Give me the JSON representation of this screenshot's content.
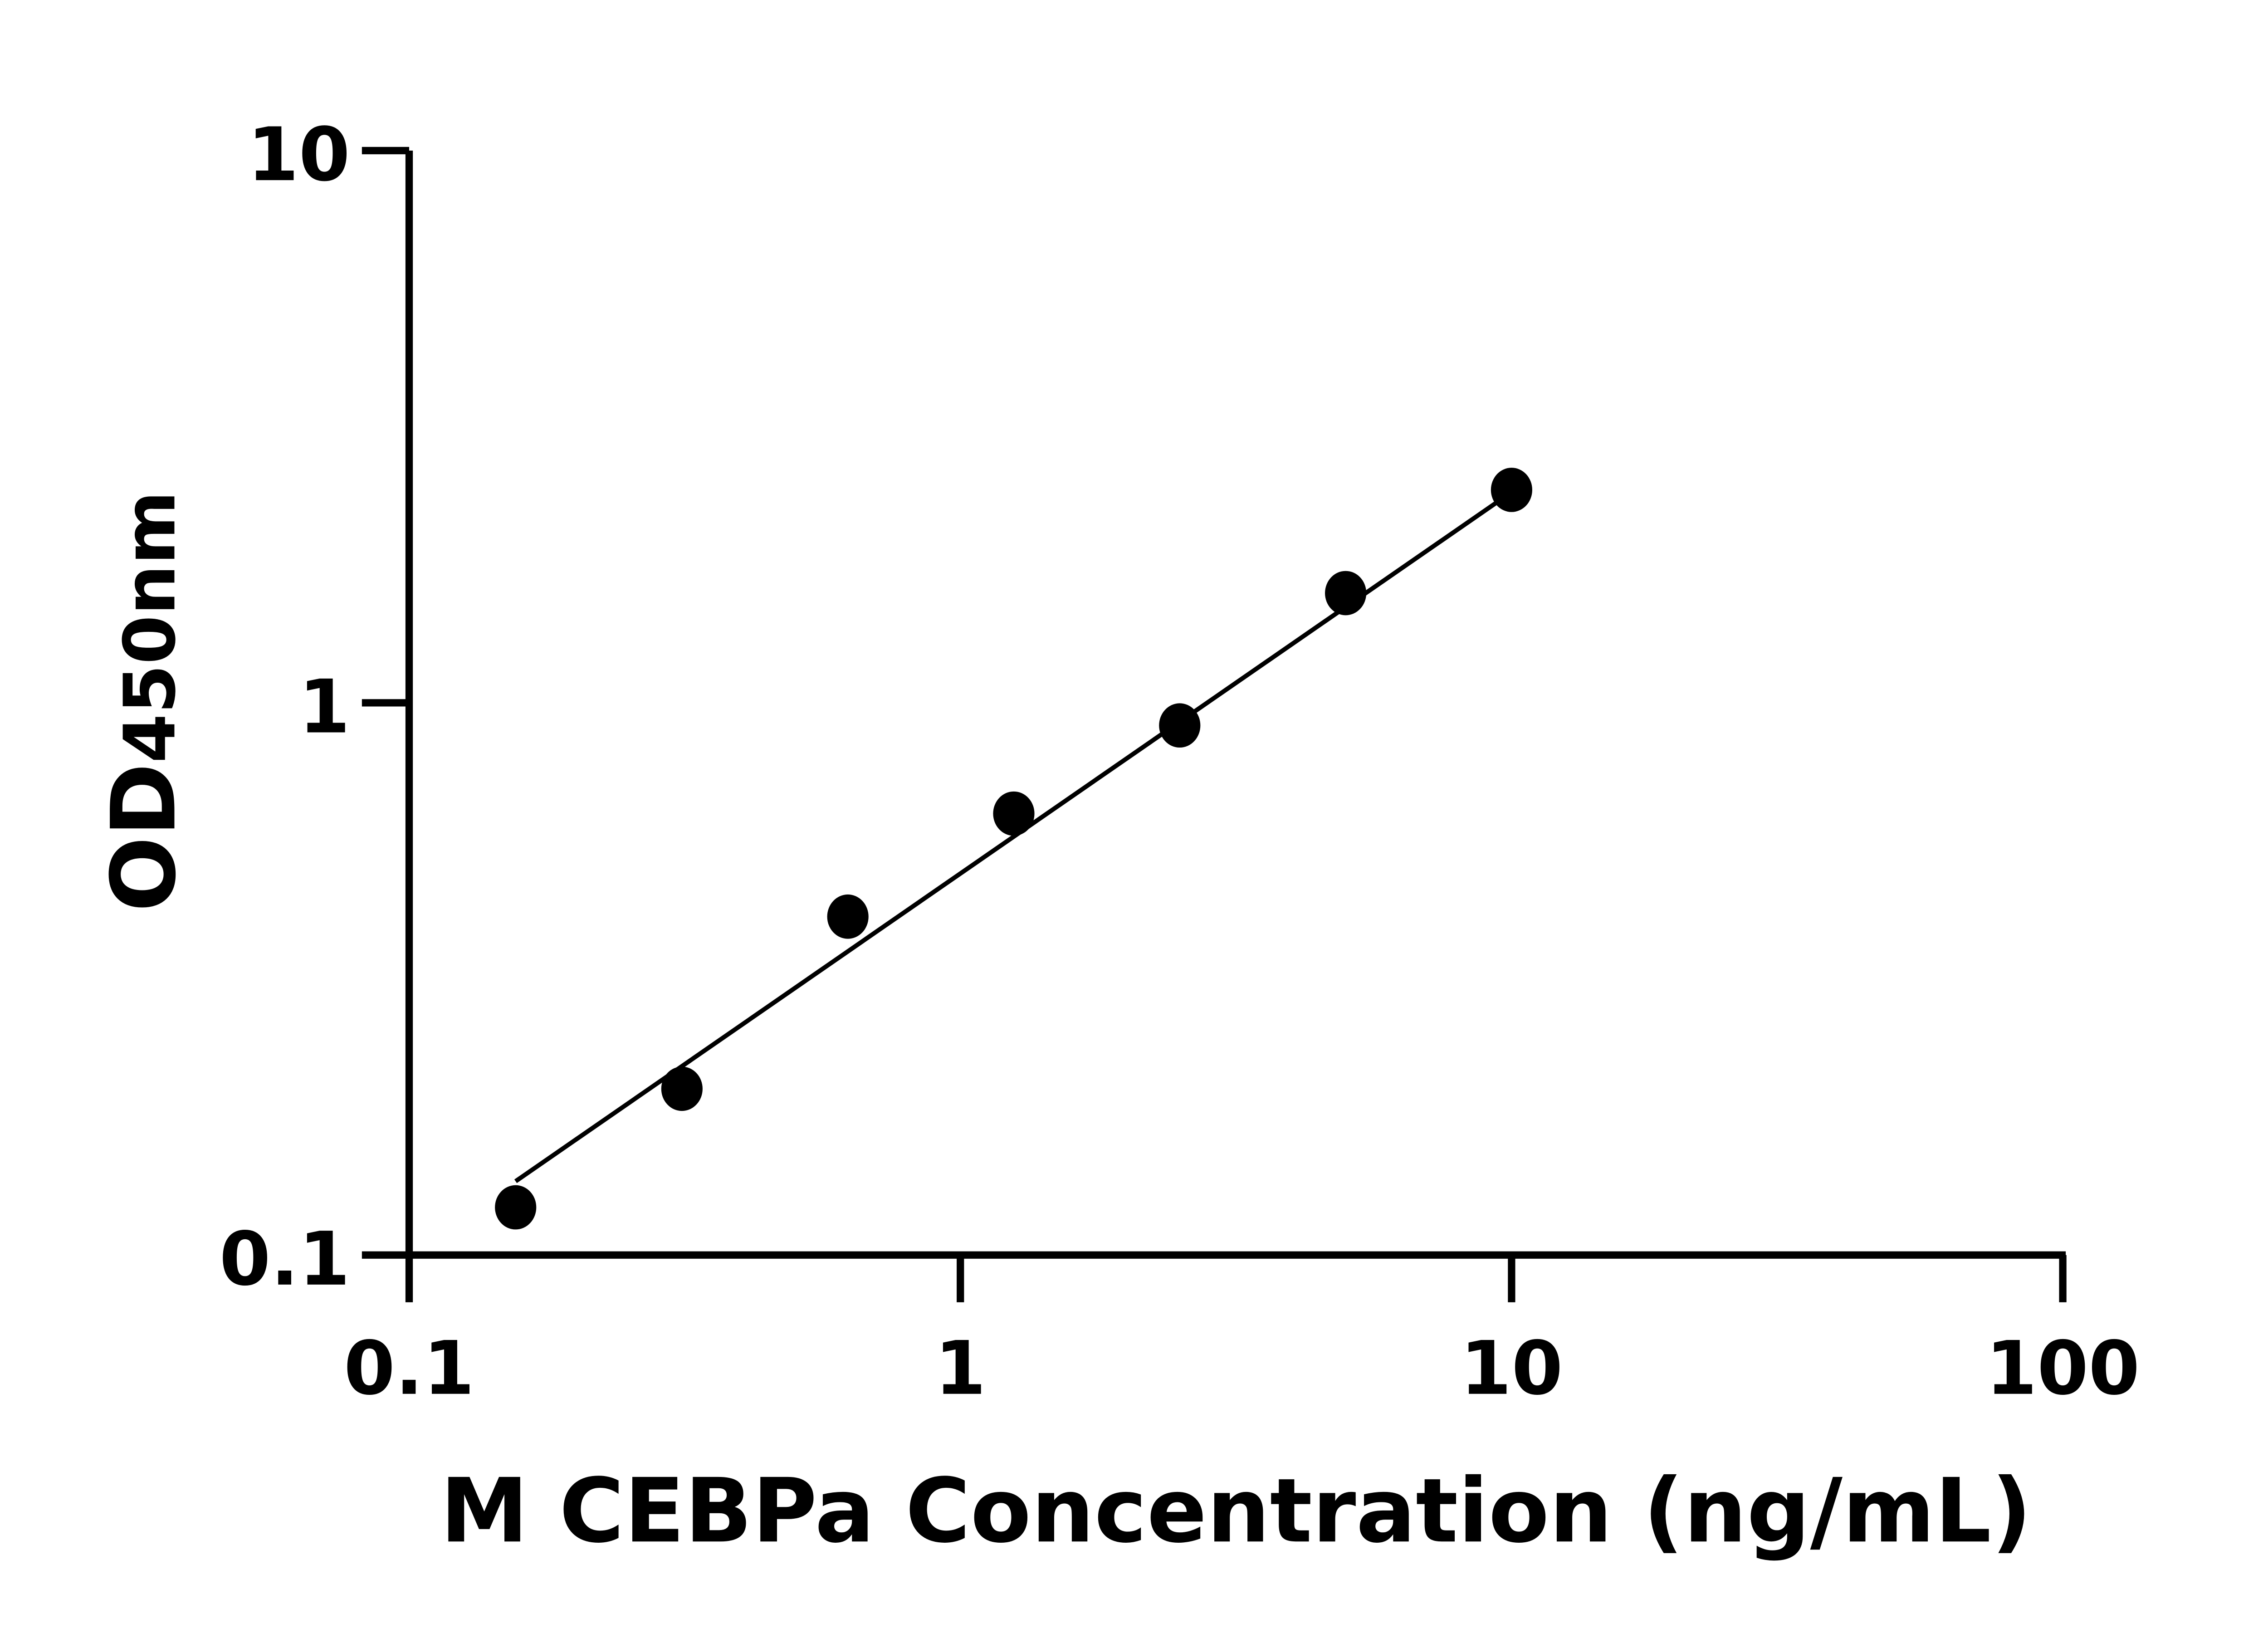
{
  "chart_data": {
    "type": "scatter",
    "title": "",
    "xlabel": "M CEBPa Concentration (ng/mL)",
    "ylabel_main": "OD",
    "ylabel_sub": "450nm",
    "x_scale": "log",
    "y_scale": "log",
    "xlim": [
      0.1,
      100
    ],
    "ylim": [
      0.1,
      10
    ],
    "x_ticks": [
      0.1,
      1,
      10,
      100
    ],
    "x_tick_labels": [
      "0.1",
      "1",
      "10",
      "100"
    ],
    "y_ticks": [
      0.1,
      1,
      10
    ],
    "y_tick_labels": [
      "0.1",
      "1",
      "10"
    ],
    "grid": false,
    "points": {
      "x": [
        0.156,
        0.3125,
        0.625,
        1.25,
        2.5,
        5,
        10
      ],
      "y": [
        0.122,
        0.2,
        0.41,
        0.63,
        0.91,
        1.58,
        2.43
      ]
    },
    "fit_line": {
      "x": [
        0.156,
        9.6
      ],
      "y": [
        0.136,
        2.34
      ]
    },
    "colors": {
      "points": "#000000",
      "line": "#000000",
      "axes": "#000000"
    }
  }
}
